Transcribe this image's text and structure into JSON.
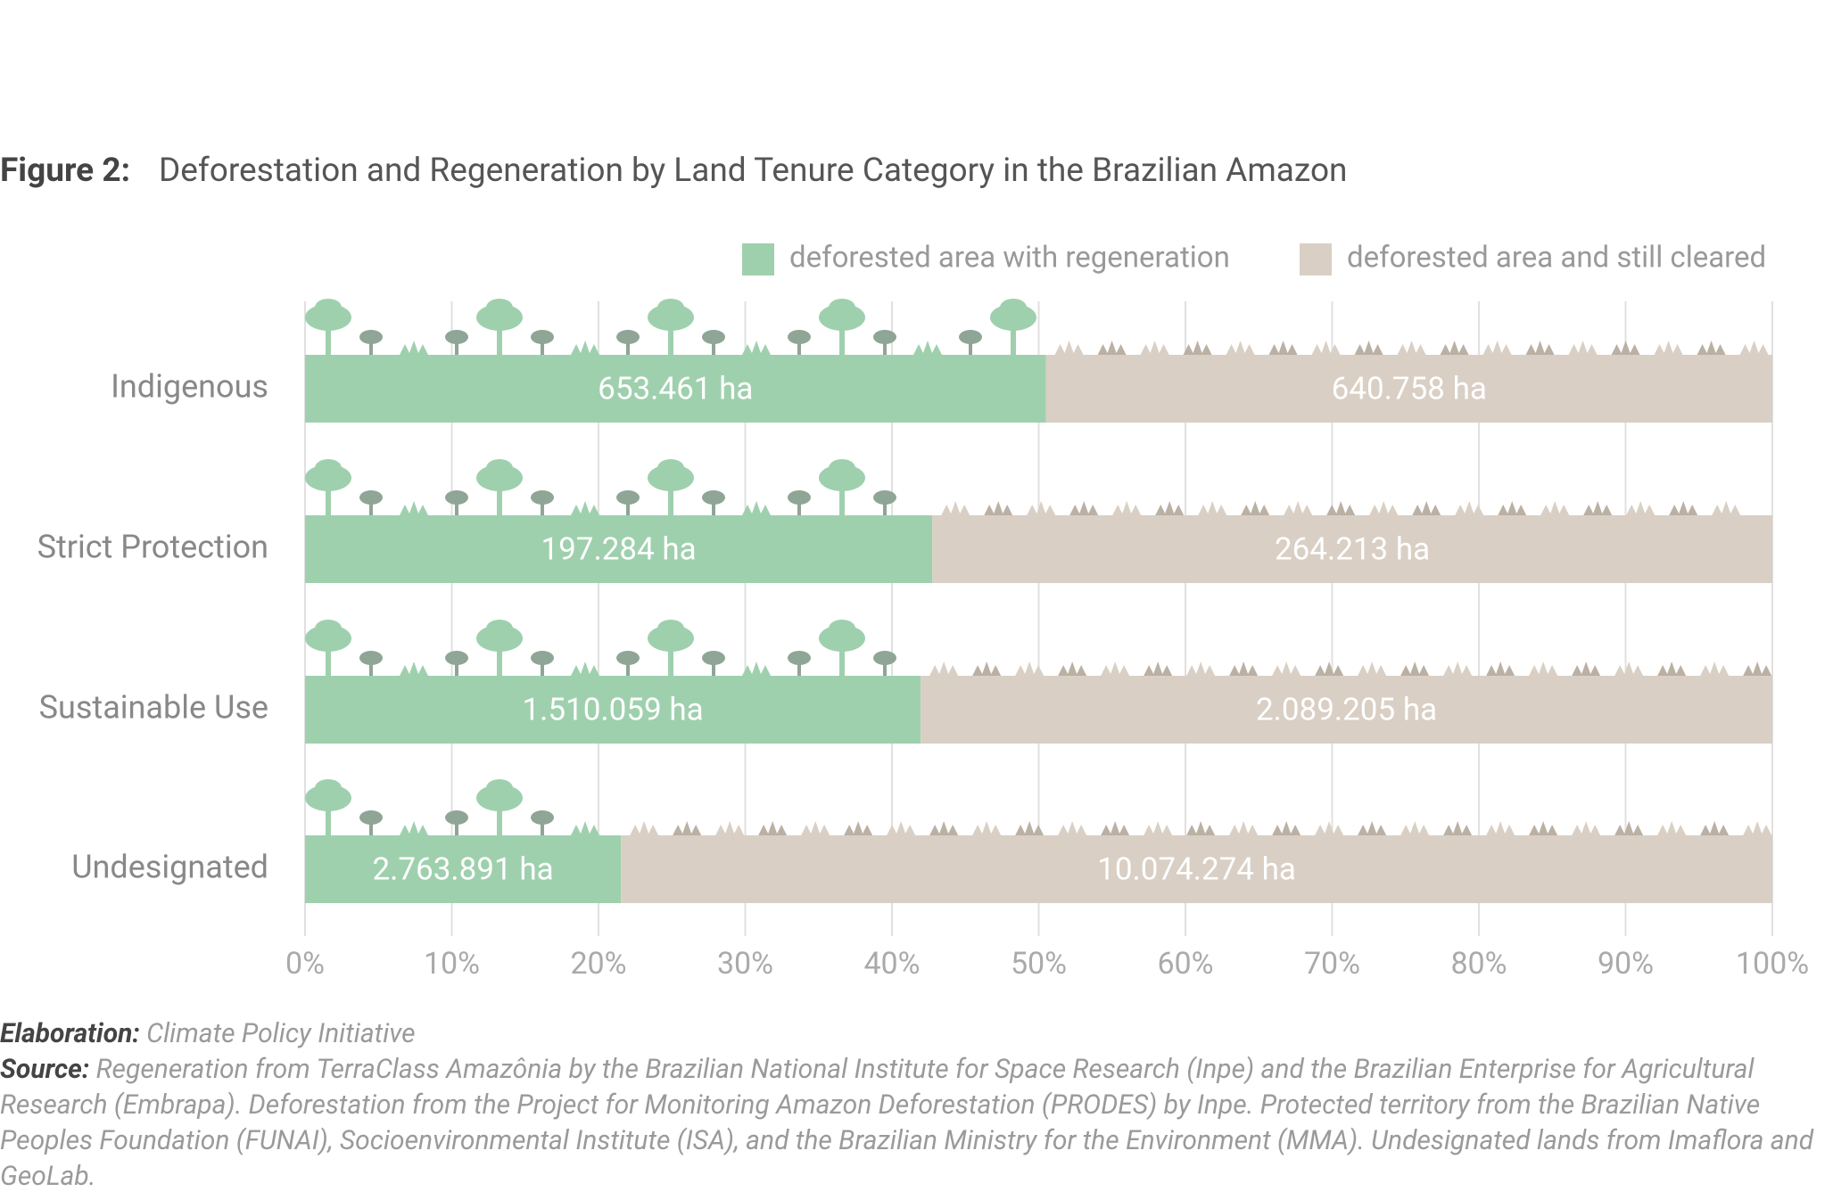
{
  "chart_data": {
    "type": "bar",
    "orientation": "horizontal",
    "stacked": "percent",
    "title_prefix": "Figure 2:",
    "title": "Deforestation and Regeneration by Land Tenure Category in the Brazilian Amazon",
    "categories": [
      "Indigenous",
      "Strict Protection",
      "Sustainable Use",
      "Undesignated"
    ],
    "series": [
      {
        "name": "deforested area with regeneration",
        "color": "#9fd0ae",
        "values": [
          653461,
          197284,
          1510059,
          2763891
        ],
        "value_labels": [
          "653.461 ha",
          "197.284 ha",
          "1.510.059 ha",
          "2.763.891 ha"
        ]
      },
      {
        "name": "deforested area and still cleared",
        "color": "#d9cfc4",
        "values": [
          640758,
          264213,
          2089205,
          10074274
        ],
        "value_labels": [
          "640.758 ha",
          "264.213 ha",
          "2.089.205 ha",
          "10.074.274 ha"
        ]
      }
    ],
    "xlim": [
      0,
      100
    ],
    "xticks": [
      {
        "value": 0,
        "label": "0%"
      },
      {
        "value": 10,
        "label": "10%"
      },
      {
        "value": 20,
        "label": "20%"
      },
      {
        "value": 30,
        "label": "30%"
      },
      {
        "value": 40,
        "label": "40%"
      },
      {
        "value": 50,
        "label": "50%"
      },
      {
        "value": 60,
        "label": "60%"
      },
      {
        "value": 70,
        "label": "70%"
      },
      {
        "value": 80,
        "label": "80%"
      },
      {
        "value": 90,
        "label": "90%"
      },
      {
        "value": 100,
        "label": "100%"
      }
    ],
    "grid": true,
    "legend": "top-right",
    "elaboration_label": "Elaboration:",
    "elaboration": "Climate Policy Initiative",
    "source_label": "Source:",
    "source": "Regeneration from TerraClass Amazônia by the Brazilian National Institute for Space Research (Inpe) and the Brazilian Enterprise for Agricultural Research (Embrapa). Deforestation from the Project for Monitoring Amazon Deforestation (PRODES) by Inpe. Protected territory from the Brazilian Native Peoples Foundation (FUNAI), Socioenvironmental Institute (ISA), and the Brazilian Ministry for the Environment (MMA). Undesignated lands from Imaflora and GeoLab."
  }
}
